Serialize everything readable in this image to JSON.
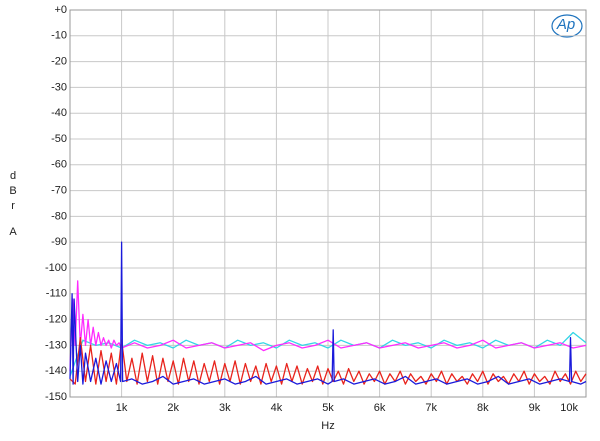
{
  "chart_data": {
    "type": "line",
    "y_label": "dBr",
    "y_unit": "A",
    "x_label": "Hz",
    "logo": "Ap",
    "xlim": [
      0,
      10000
    ],
    "ylim": [
      -150,
      0
    ],
    "xticks": [
      {
        "value": 1000,
        "label": "1k"
      },
      {
        "value": 2000,
        "label": "2k"
      },
      {
        "value": 3000,
        "label": "3k"
      },
      {
        "value": 4000,
        "label": "4k"
      },
      {
        "value": 5000,
        "label": "5k"
      },
      {
        "value": 6000,
        "label": "6k"
      },
      {
        "value": 7000,
        "label": "7k"
      },
      {
        "value": 8000,
        "label": "8k"
      },
      {
        "value": 9000,
        "label": "9k"
      },
      {
        "value": 10000,
        "label": "10k"
      }
    ],
    "yticks": [
      {
        "value": 0,
        "label": "+0"
      },
      -10,
      -20,
      -30,
      -40,
      -50,
      -60,
      -70,
      -80,
      -90,
      -100,
      -110,
      -120,
      -130,
      -140,
      -150
    ],
    "grid": true,
    "series": [
      {
        "color": "#33d6e6",
        "x": [
          0,
          250,
          500,
          750,
          1000,
          1250,
          1500,
          1750,
          2000,
          2250,
          2500,
          2750,
          3000,
          3250,
          3500,
          3750,
          4000,
          4250,
          4500,
          4750,
          5000,
          5250,
          5500,
          5750,
          6000,
          6250,
          6500,
          6750,
          7000,
          7250,
          7500,
          7750,
          8000,
          8250,
          8500,
          8750,
          9000,
          9250,
          9500,
          9750,
          10000
        ],
        "values": [
          -142,
          -128,
          -130,
          -129,
          -131,
          -128,
          -130,
          -129,
          -131,
          -128,
          -130,
          -129,
          -131,
          -128,
          -130,
          -129,
          -131,
          -128,
          -130,
          -129,
          -131,
          -128,
          -130,
          -129,
          -131,
          -128,
          -130,
          -129,
          -131,
          -128,
          -130,
          -129,
          -131,
          -128,
          -130,
          -129,
          -131,
          -128,
          -130,
          -125,
          -129
        ]
      },
      {
        "color": "#ff2bff",
        "x": [
          0,
          50,
          100,
          150,
          200,
          250,
          300,
          350,
          400,
          450,
          500,
          550,
          600,
          650,
          700,
          750,
          800,
          850,
          900,
          950,
          1000,
          1250,
          1500,
          1750,
          2000,
          2250,
          2500,
          2750,
          3000,
          3250,
          3500,
          3750,
          4000,
          4250,
          4500,
          4750,
          5000,
          5250,
          5500,
          5750,
          6000,
          6250,
          6500,
          6750,
          7000,
          7250,
          7500,
          7750,
          8000,
          8250,
          8500,
          8750,
          9000,
          9250,
          9500,
          9750,
          10000
        ],
        "values": [
          -140,
          -112,
          -130,
          -105,
          -130,
          -118,
          -130,
          -120,
          -130,
          -123,
          -130,
          -125,
          -130,
          -127,
          -130,
          -128,
          -131,
          -128,
          -130,
          -129,
          -131,
          -129,
          -131,
          -130,
          -128,
          -131,
          -130,
          -129,
          -131,
          -130,
          -129,
          -132,
          -130,
          -129,
          -131,
          -130,
          -128,
          -131,
          -130,
          -129,
          -131,
          -130,
          -129,
          -131,
          -130,
          -129,
          -131,
          -130,
          -128,
          -131,
          -130,
          -129,
          -131,
          -130,
          -129,
          -131,
          -130
        ]
      },
      {
        "color": "#e8231c",
        "x": [
          0,
          100,
          200,
          300,
          400,
          500,
          600,
          700,
          800,
          900,
          1000,
          1100,
          1200,
          1300,
          1400,
          1500,
          1600,
          1700,
          1800,
          1900,
          2000,
          2100,
          2200,
          2300,
          2400,
          2500,
          2600,
          2700,
          2800,
          2900,
          3000,
          3100,
          3200,
          3300,
          3400,
          3500,
          3600,
          3700,
          3800,
          3900,
          4000,
          4100,
          4200,
          4300,
          4400,
          4500,
          4600,
          4700,
          4800,
          4900,
          5000,
          5100,
          5200,
          5300,
          5400,
          5500,
          5600,
          5700,
          5800,
          5900,
          6000,
          6100,
          6200,
          6300,
          6400,
          6500,
          6600,
          6700,
          6800,
          6900,
          7000,
          7100,
          7200,
          7300,
          7400,
          7500,
          7600,
          7700,
          7800,
          7900,
          8000,
          8100,
          8200,
          8300,
          8400,
          8500,
          8600,
          8700,
          8800,
          8900,
          9000,
          9100,
          9200,
          9300,
          9400,
          9500,
          9600,
          9700,
          9800,
          9900,
          10000
        ],
        "values": [
          -143,
          -145,
          -127,
          -144,
          -130,
          -145,
          -132,
          -144,
          -133,
          -145,
          -128,
          -144,
          -135,
          -145,
          -133,
          -144,
          -134,
          -145,
          -135,
          -144,
          -136,
          -145,
          -135,
          -144,
          -136,
          -145,
          -137,
          -144,
          -136,
          -145,
          -137,
          -144,
          -136,
          -145,
          -137,
          -144,
          -138,
          -145,
          -137,
          -144,
          -138,
          -145,
          -137,
          -144,
          -138,
          -145,
          -139,
          -144,
          -138,
          -145,
          -139,
          -144,
          -140,
          -145,
          -139,
          -144,
          -140,
          -145,
          -141,
          -144,
          -140,
          -145,
          -141,
          -144,
          -140,
          -145,
          -141,
          -144,
          -142,
          -145,
          -141,
          -144,
          -140,
          -145,
          -141,
          -144,
          -142,
          -145,
          -141,
          -144,
          -140,
          -145,
          -141,
          -144,
          -142,
          -145,
          -141,
          -144,
          -140,
          -145,
          -141,
          -144,
          -142,
          -145,
          -140,
          -144,
          -141,
          -145,
          -140,
          -144,
          -141
        ]
      },
      {
        "color": "#1a1adb",
        "x": [
          0,
          40,
          60,
          80,
          150,
          200,
          250,
          300,
          400,
          500,
          600,
          700,
          800,
          900,
          980,
          1000,
          1020,
          1200,
          1400,
          1600,
          1800,
          2000,
          2200,
          2400,
          2600,
          2800,
          3000,
          3200,
          3400,
          3600,
          3800,
          4000,
          4200,
          4400,
          4600,
          4800,
          5000,
          5080,
          5100,
          5120,
          5300,
          5500,
          5700,
          5900,
          6100,
          6300,
          6500,
          6700,
          6900,
          7100,
          7300,
          7500,
          7700,
          7900,
          8100,
          8300,
          8500,
          8700,
          8900,
          9100,
          9300,
          9500,
          9680,
          9700,
          9720,
          9900,
          10000
        ],
        "values": [
          -143,
          -110,
          -145,
          -112,
          -144,
          -130,
          -145,
          -133,
          -144,
          -135,
          -145,
          -136,
          -144,
          -137,
          -144,
          -90,
          -144,
          -143,
          -145,
          -144,
          -142,
          -145,
          -144,
          -143,
          -145,
          -144,
          -143,
          -145,
          -144,
          -142,
          -145,
          -144,
          -143,
          -145,
          -144,
          -143,
          -145,
          -144,
          -124,
          -144,
          -143,
          -145,
          -144,
          -143,
          -145,
          -144,
          -142,
          -145,
          -144,
          -143,
          -145,
          -144,
          -143,
          -145,
          -144,
          -142,
          -145,
          -144,
          -143,
          -145,
          -144,
          -143,
          -144,
          -127,
          -144,
          -145,
          -144
        ]
      }
    ]
  }
}
